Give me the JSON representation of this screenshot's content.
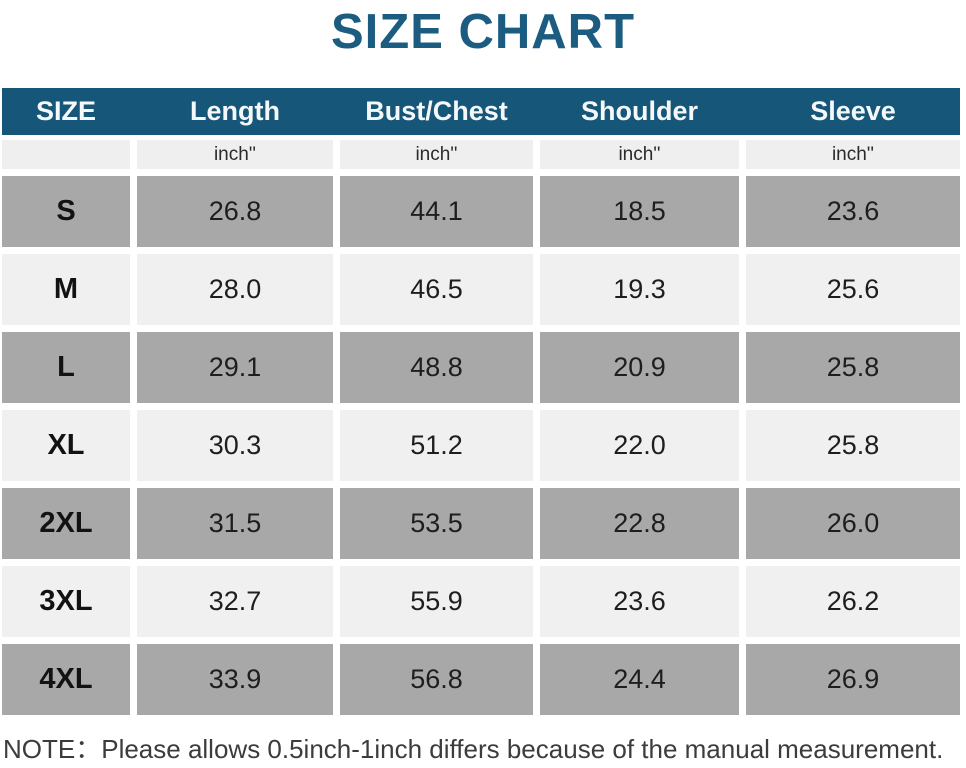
{
  "title": "SIZE CHART",
  "header": [
    "SIZE",
    "Length",
    "Bust/Chest",
    "Shoulder",
    "Sleeve"
  ],
  "unit_label": "inch''",
  "rows": [
    {
      "size": "S",
      "length": "26.8",
      "bust": "44.1",
      "shoulder": "18.5",
      "sleeve": "23.6"
    },
    {
      "size": "M",
      "length": "28.0",
      "bust": "46.5",
      "shoulder": "19.3",
      "sleeve": "25.6"
    },
    {
      "size": "L",
      "length": "29.1",
      "bust": "48.8",
      "shoulder": "20.9",
      "sleeve": "25.8"
    },
    {
      "size": "XL",
      "length": "30.3",
      "bust": "51.2",
      "shoulder": "22.0",
      "sleeve": "25.8"
    },
    {
      "size": "2XL",
      "length": "31.5",
      "bust": "53.5",
      "shoulder": "22.8",
      "sleeve": "26.0"
    },
    {
      "size": "3XL",
      "length": "32.7",
      "bust": "55.9",
      "shoulder": "23.6",
      "sleeve": "26.2"
    },
    {
      "size": "4XL",
      "length": "33.9",
      "bust": "56.8",
      "shoulder": "24.4",
      "sleeve": "26.9"
    }
  ],
  "note": "NOTE：Please allows 0.5inch-1inch differs because of the manual measurement.",
  "colors": {
    "title_text": "#1b5c80",
    "header_bg": "#165678",
    "header_text": "#f4f8fa",
    "row_gray": "#a8a8a8",
    "row_light": "#f0f0f0",
    "unit_row_bg": "#efefef",
    "note_text": "#3c3c3c"
  },
  "chart_data": {
    "type": "table",
    "title": "SIZE CHART",
    "columns": [
      "SIZE",
      "Length",
      "Bust/Chest",
      "Shoulder",
      "Sleeve"
    ],
    "units": "inch",
    "rows": [
      [
        "S",
        26.8,
        44.1,
        18.5,
        23.6
      ],
      [
        "M",
        28.0,
        46.5,
        19.3,
        25.6
      ],
      [
        "L",
        29.1,
        48.8,
        20.9,
        25.8
      ],
      [
        "XL",
        30.3,
        51.2,
        22.0,
        25.8
      ],
      [
        "2XL",
        31.5,
        53.5,
        22.8,
        26.0
      ],
      [
        "3XL",
        32.7,
        55.9,
        23.6,
        26.2
      ],
      [
        "4XL",
        33.9,
        56.8,
        24.4,
        26.9
      ]
    ],
    "layout": {
      "header_style": "dark-teal-bar",
      "row_striping": "gray-light-alternating",
      "grid": "white-gaps-between-cells"
    },
    "note": "NOTE：Please allows 0.5inch-1inch differs because of the manual measurement."
  }
}
